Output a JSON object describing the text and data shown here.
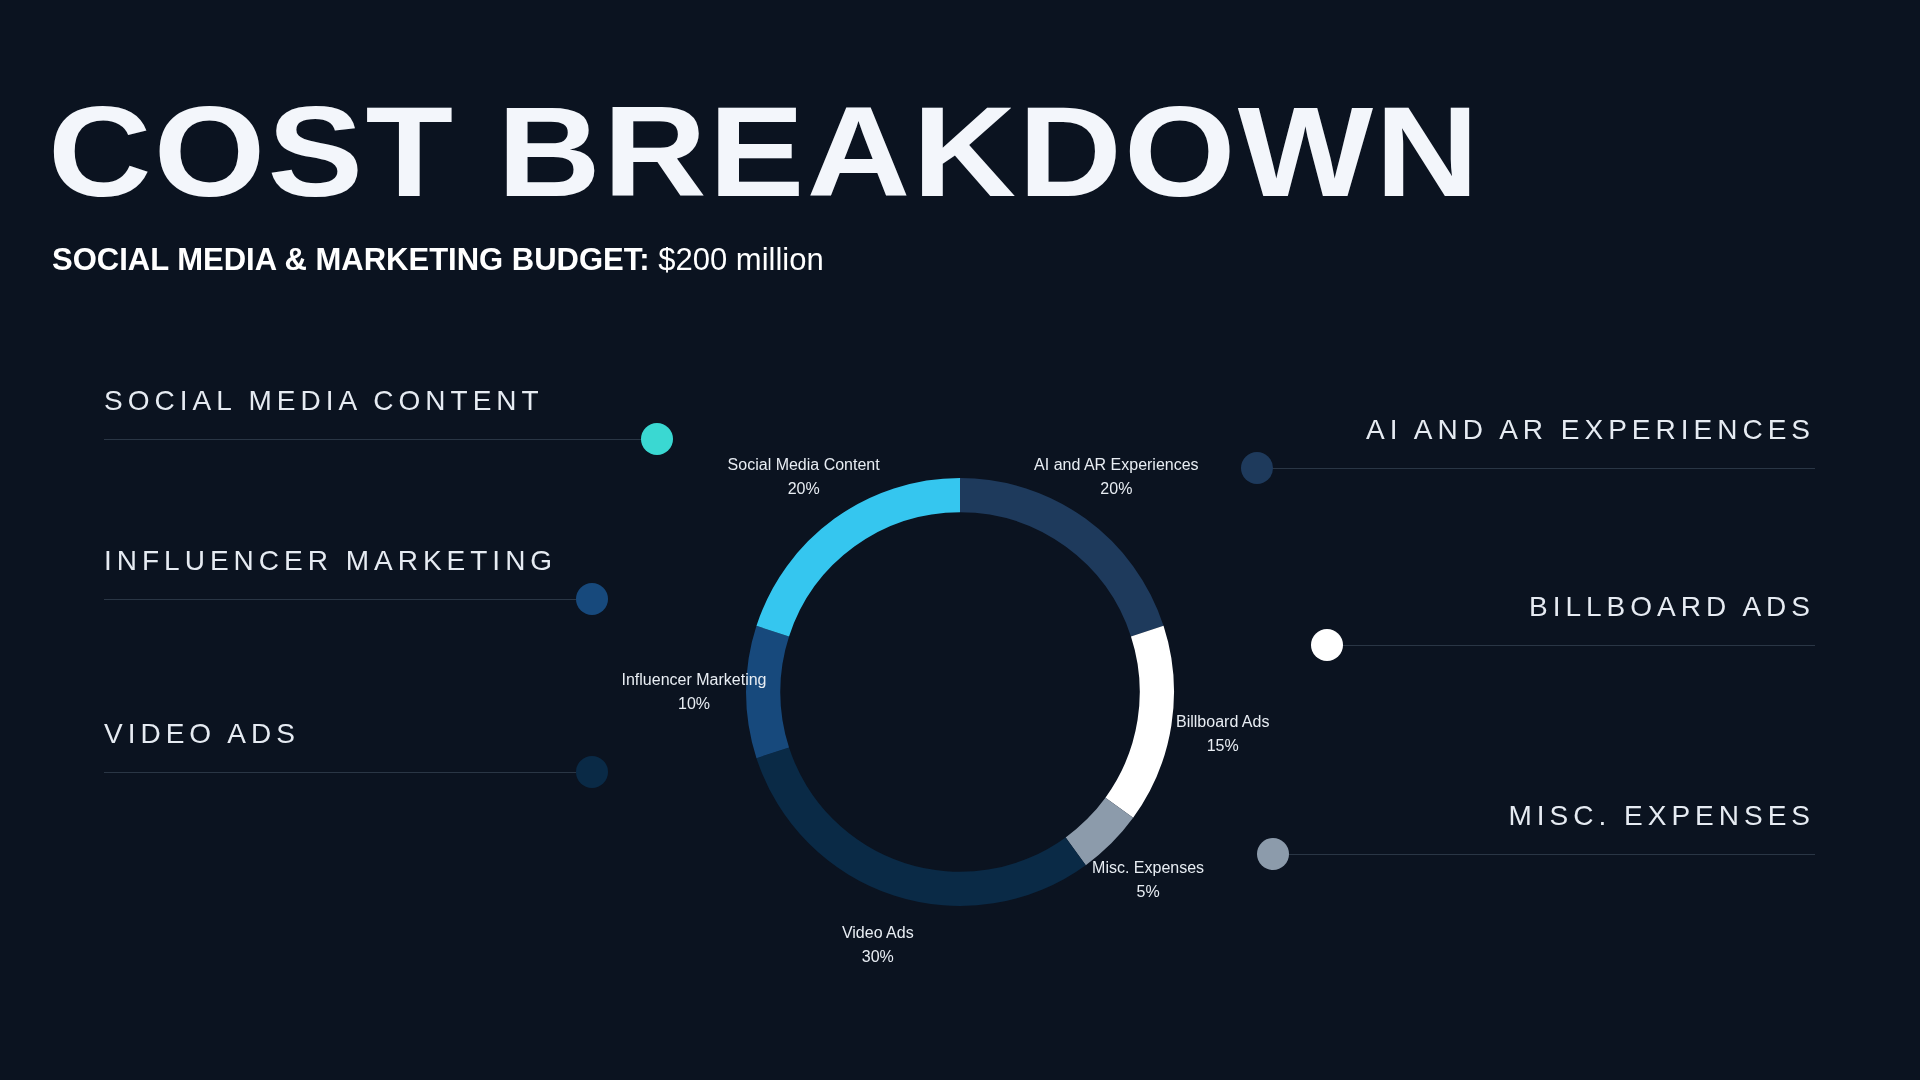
{
  "chart_data": {
    "type": "donut",
    "title": "COST BREAKDOWN",
    "subtitle": "SOCIAL MEDIA & MARKETING BUDGET: $200 million",
    "categories": [
      "AI and AR Experiences",
      "Billboard Ads",
      "Misc. Expenses",
      "Video Ads",
      "Influencer Marketing",
      "Social Media Content"
    ],
    "values": [
      20,
      15,
      5,
      30,
      10,
      20
    ],
    "value_labels": [
      "20%",
      "15%",
      "5%",
      "30%",
      "10%",
      "20%"
    ],
    "colors": [
      "#1e3a5c",
      "#ffffff",
      "#8c9bab",
      "#0a2a46",
      "#17497c",
      "#35c6ef"
    ],
    "annotations": [
      "SOCIAL MEDIA CONTENT",
      "INFLUENCER MARKETING",
      "VIDEO ADS",
      "AI AND AR EXPERIENCES",
      "BILLBOARD ADS",
      "MISC. EXPENSES"
    ]
  }
}
